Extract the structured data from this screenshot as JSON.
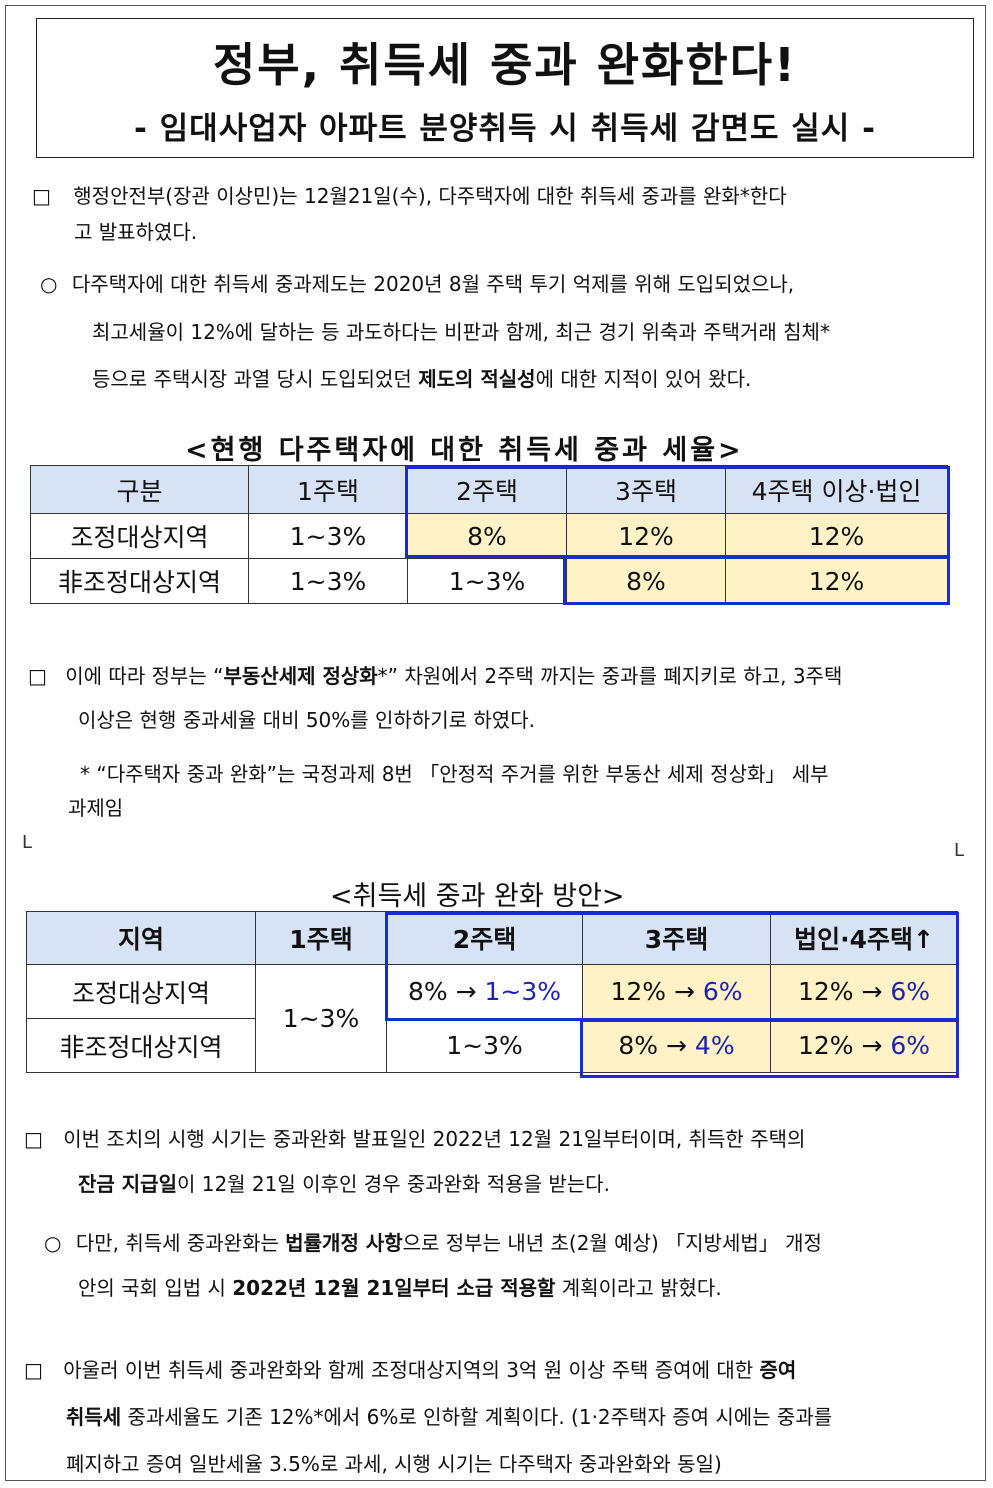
{
  "title": "정부, 취득세 중과 완화한다!",
  "subtitle": "- 임대사업자 아파트 분양취득 시 취득세 감면도 실시 -",
  "para1": {
    "bullet": "□",
    "line1": "행정안전부(장관 이상민)는 12월21일(수), 다주택자에 대한 취득세 중과를 완화*한다",
    "line2": "고 발표하였다."
  },
  "para2": {
    "bullet": "○",
    "line1": "다주택자에 대한 취득세 중과제도는 2020년 8월 주택 투기 억제를 위해 도입되었으나,",
    "line2": "최고세율이 12%에 달하는 등 과도하다는 비판과 함께, 최근 경기 위축과 주택거래 침체*",
    "line3a": "등으로 주택시장 과열 당시 도입되었던 ",
    "line3b": "제도의 적실성",
    "line3c": "에 대한 지적이 있어 왔다."
  },
  "table1": {
    "caption": "<현행 다주택자에 대한 취득세 중과 세율>",
    "headers": [
      "구분",
      "1주택",
      "2주택",
      "3주택",
      "4주택 이상·법인"
    ],
    "rows": [
      [
        "조정대상지역",
        "1~3%",
        "8%",
        "12%",
        "12%"
      ],
      [
        "非조정대상지역",
        "1~3%",
        "1~3%",
        "8%",
        "12%"
      ]
    ]
  },
  "para3": {
    "bullet": "□",
    "a": "이에 따라 정부는 “",
    "b": "부동산세제 정상화",
    "c": "*” 차원에서 2주택 까지는 중과를 폐지키로 하고, 3주택",
    "line2": "이상은 현행 중과세율 대비 50%를 인하하기로 하였다."
  },
  "footnote": {
    "line1": "* “다주택자 중과 완화”는 국정과제 8번 「안정적 주거를 위한 부동산 세제 정상화」 세부",
    "line2": "과제임"
  },
  "marks": [
    "L",
    "L"
  ],
  "table2": {
    "caption": "<취득세 중과 완화 방안>",
    "headers": [
      "지역",
      "1주택",
      "2주택",
      "3주택",
      "법인·4주택↑"
    ],
    "row_labels": [
      "조정대상지역",
      "非조정대상지역"
    ],
    "one_house": "1~3%",
    "c_2_1": {
      "old": "8% →",
      "new": "1~3%"
    },
    "c_3_1": {
      "old": "12% →",
      "new": "6%"
    },
    "c_4_1": {
      "old": "12% →",
      "new": "6%"
    },
    "c_2_2": "1~3%",
    "c_3_2": {
      "old": "8% →",
      "new": "4%"
    },
    "c_4_2": {
      "old": "12% →",
      "new": "6%"
    }
  },
  "para4": {
    "bullet": "□",
    "line1": "이번 조치의 시행 시기는 중과완화 발표일인 2022년 12월 21일부터이며, 취득한 주택의",
    "l2b": "잔금 지급일",
    "l2c": "이 12월 21일 이후인 경우 중과완화 적용을 받는다."
  },
  "para5": {
    "bullet": "○",
    "a": "다만, 취득세 중과완화는 ",
    "b": "법률개정 사항",
    "c": "으로 정부는 내년 초(2월 예상) 「지방세법」 개정",
    "l2a": "안의 국회 입법 시 ",
    "l2b": "2022년 12월 21일부터 소급 적용할",
    "l2c": " 계획이라고 밝혔다."
  },
  "para6": {
    "bullet": "□",
    "a": "아울러 이번 취득세 중과완화와 함께 조정대상지역의 3억 원 이상 주택 증여에 대한 ",
    "b": "증여",
    "l2a": "취득세",
    "l2b": " 중과세율도 기존 12%*에서 6%로 인하할 계획이다. (1·2주택자 증여 시에는 중과를",
    "line3": "폐지하고 증여 일반세율 3.5%로 과세, 시행 시기는 다주택자 중과완화와 동일)"
  }
}
